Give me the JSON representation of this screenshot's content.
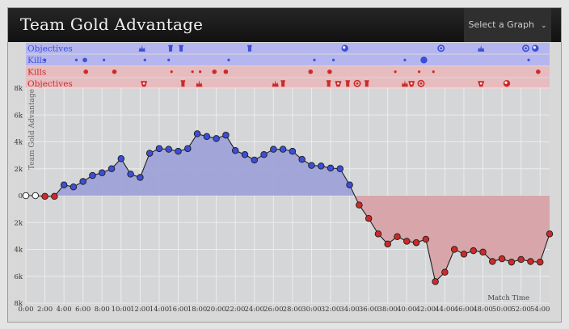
{
  "header": {
    "title": "Team Gold Advantage",
    "select_label": "Select a Graph"
  },
  "colors": {
    "blue_team": "#3b4fd6",
    "red_team": "#cc2a2a",
    "blue_fill": "#9fa2d8",
    "red_fill": "#d8a3a8",
    "blue_band": "#b5b6ef",
    "red_band": "#e7bcbf"
  },
  "event_rows": [
    {
      "label": "Objectives",
      "team": "blue",
      "events": [
        {
          "t": 12.2,
          "icon": "dragon-icon"
        },
        {
          "t": 15.2,
          "icon": "tower-icon"
        },
        {
          "t": 16.3,
          "icon": "tower-icon"
        },
        {
          "t": 23.5,
          "icon": "tower-icon"
        },
        {
          "t": 33.5,
          "icon": "baron-icon"
        },
        {
          "t": 43.6,
          "icon": "herald-icon"
        },
        {
          "t": 47.8,
          "icon": "dragon-icon"
        },
        {
          "t": 52.5,
          "icon": "herald-icon"
        },
        {
          "t": 53.5,
          "icon": "baron-icon"
        }
      ]
    },
    {
      "label": "Kills",
      "team": "blue",
      "events": [
        {
          "t": 2.0,
          "size": 1
        },
        {
          "t": 5.3,
          "size": 1
        },
        {
          "t": 6.2,
          "size": 2
        },
        {
          "t": 8.2,
          "size": 1
        },
        {
          "t": 12.5,
          "size": 1
        },
        {
          "t": 15.0,
          "size": 1
        },
        {
          "t": 21.3,
          "size": 1
        },
        {
          "t": 30.3,
          "size": 1
        },
        {
          "t": 32.3,
          "size": 1
        },
        {
          "t": 39.8,
          "size": 1
        },
        {
          "t": 41.8,
          "size": 3
        },
        {
          "t": 52.8,
          "size": 1
        }
      ]
    },
    {
      "label": "Kills",
      "team": "red",
      "events": [
        {
          "t": 6.3,
          "size": 2
        },
        {
          "t": 9.3,
          "size": 2
        },
        {
          "t": 15.3,
          "size": 1
        },
        {
          "t": 17.5,
          "size": 1
        },
        {
          "t": 18.3,
          "size": 1
        },
        {
          "t": 19.8,
          "size": 2
        },
        {
          "t": 21.0,
          "size": 2
        },
        {
          "t": 29.9,
          "size": 2
        },
        {
          "t": 31.9,
          "size": 2
        },
        {
          "t": 38.8,
          "size": 1
        },
        {
          "t": 41.3,
          "size": 1
        },
        {
          "t": 42.8,
          "size": 1
        },
        {
          "t": 53.8,
          "size": 2
        }
      ]
    },
    {
      "label": "Objectives",
      "team": "red",
      "events": [
        {
          "t": 12.4,
          "icon": "inhibitor-icon"
        },
        {
          "t": 16.5,
          "icon": "tower-icon"
        },
        {
          "t": 18.2,
          "icon": "dragon-icon"
        },
        {
          "t": 26.2,
          "icon": "dragon-icon"
        },
        {
          "t": 27.0,
          "icon": "tower-icon"
        },
        {
          "t": 31.8,
          "icon": "tower-icon"
        },
        {
          "t": 32.8,
          "icon": "inhibitor-icon"
        },
        {
          "t": 33.8,
          "icon": "tower-icon"
        },
        {
          "t": 34.8,
          "icon": "herald-icon"
        },
        {
          "t": 35.8,
          "icon": "tower-icon"
        },
        {
          "t": 39.8,
          "icon": "dragon-icon"
        },
        {
          "t": 40.5,
          "icon": "inhibitor-icon"
        },
        {
          "t": 41.5,
          "icon": "herald-icon"
        },
        {
          "t": 47.8,
          "icon": "inhibitor-icon"
        },
        {
          "t": 50.5,
          "icon": "baron-icon"
        }
      ]
    }
  ],
  "chart_data": {
    "type": "area",
    "ylabel": "Team Gold Advantage",
    "xlabel": "Match Time",
    "x_unit": "minutes",
    "xlim": [
      0,
      55
    ],
    "ylim": [
      -8000,
      8000
    ],
    "y_ticks": [
      8000,
      6000,
      4000,
      2000,
      0,
      -2000,
      -4000,
      -6000,
      -8000
    ],
    "y_tick_labels": [
      "8k",
      "6k",
      "4k",
      "2k",
      "0",
      "2k",
      "4k",
      "6k",
      "8k"
    ],
    "x_ticks": [
      0,
      2,
      4,
      6,
      8,
      10,
      12,
      14,
      16,
      18,
      20,
      22,
      24,
      26,
      28,
      30,
      32,
      34,
      36,
      38,
      40,
      42,
      44,
      46,
      48,
      50,
      52,
      54
    ],
    "x_tick_labels": [
      "0:00",
      "2:00",
      "4:00",
      "6:00",
      "8:00",
      "10:00",
      "12:00",
      "14:00",
      "16:00",
      "18:00",
      "20:00",
      "22:00",
      "24:00",
      "26:00",
      "28:00",
      "30:00",
      "32:00",
      "34:00",
      "36:00",
      "38:00",
      "40:00",
      "42:00",
      "44:00",
      "46:00",
      "48:00",
      "50:00",
      "52:00",
      "54:00"
    ],
    "grid": true,
    "series": [
      {
        "x": [
          0,
          1,
          2,
          3,
          4,
          5,
          6,
          7,
          8,
          9,
          10,
          11,
          12,
          13,
          14,
          15,
          16,
          17,
          18,
          19,
          20,
          21,
          22,
          23,
          24,
          25,
          26,
          27,
          28,
          29,
          30,
          31,
          32,
          33,
          34,
          35,
          36,
          37,
          38,
          39,
          40,
          41,
          42,
          43,
          44,
          45,
          46,
          47,
          48,
          49,
          50,
          51,
          52,
          53,
          54,
          55
        ],
        "y": [
          0,
          0,
          -50,
          -50,
          800,
          650,
          1050,
          1500,
          1700,
          2000,
          2750,
          1600,
          1350,
          3150,
          3500,
          3450,
          3300,
          3500,
          4600,
          4400,
          4250,
          4500,
          3350,
          3050,
          2650,
          3050,
          3450,
          3450,
          3300,
          2700,
          2250,
          2200,
          2050,
          2000,
          800,
          -700,
          -1700,
          -2850,
          -3600,
          -3050,
          -3400,
          -3500,
          -3250,
          -6400,
          -5700,
          -4000,
          -4350,
          -4100,
          -4200,
          -4900,
          -4700,
          -4950,
          -4750,
          -4900,
          -4950,
          -2850
        ]
      }
    ]
  }
}
